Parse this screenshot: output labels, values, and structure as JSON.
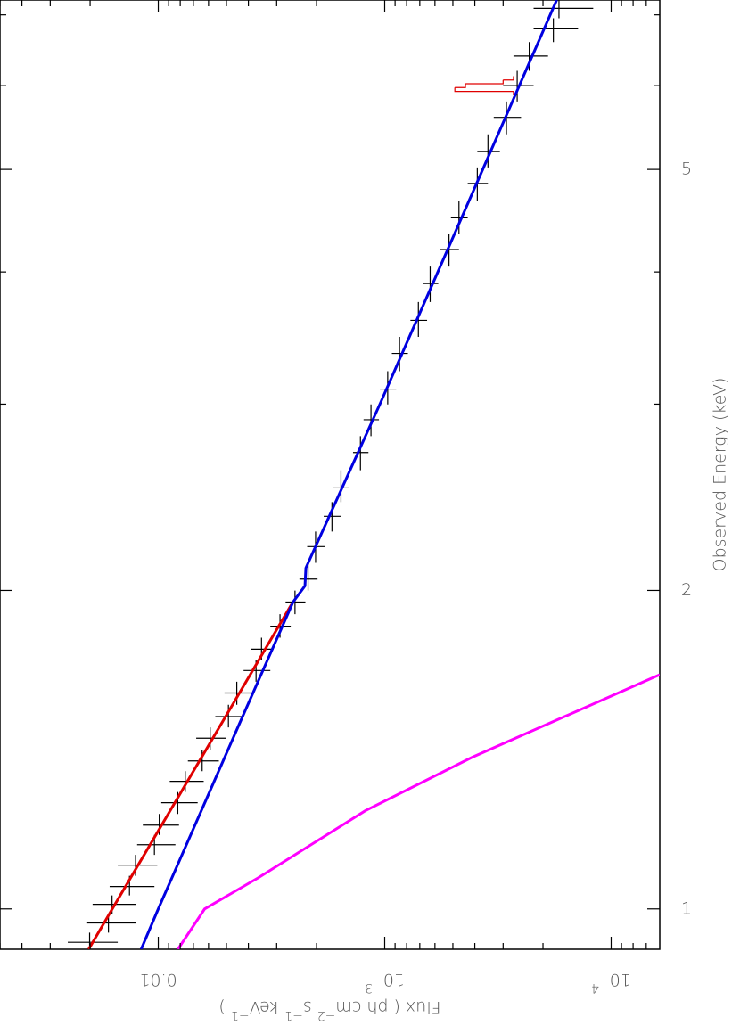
{
  "chart_data": {
    "type": "spectrum",
    "xlabel": "Observed Energy (keV)",
    "ylabel": [
      "Flux ( ph cm",
      "−2",
      " s",
      "−1",
      "  keV",
      "−1",
      " )"
    ],
    "xscale": "log",
    "yscale": "log",
    "xlim": [
      0.916,
      7.23
    ],
    "ylim": [
      6.1e-05,
      0.05
    ],
    "xticks": [
      1,
      2,
      5
    ],
    "xminorticks": [
      3,
      4,
      6,
      7
    ],
    "yticks": [
      0.01,
      {
        "value": 0.001,
        "label": "10",
        "exponent": "−3"
      },
      {
        "value": 0.0001,
        "label": "10",
        "exponent": "−4"
      }
    ],
    "yminorticks": [
      0.02,
      0.03,
      0.04,
      0.05,
      0.002,
      0.003,
      0.004,
      0.005,
      0.006,
      0.007,
      0.008,
      0.009,
      0.0002,
      0.0003,
      0.0004,
      0.0005,
      0.0006,
      0.0007,
      0.0008,
      0.0009,
      7e-05,
      8e-05,
      9e-05
    ],
    "series": [
      {
        "kind": "data",
        "color": "#000000",
        "x": [
          0.93,
          0.97,
          1.01,
          1.05,
          1.1,
          1.15,
          1.2,
          1.26,
          1.32,
          1.38,
          1.45,
          1.52,
          1.6,
          1.68,
          1.76,
          1.85,
          1.95,
          2.05,
          2.2,
          2.35,
          2.5,
          2.7,
          2.9,
          3.1,
          3.35,
          3.6,
          3.9,
          4.2,
          4.5,
          4.85,
          5.2,
          5.6,
          6,
          6.4,
          6.8,
          7.1
        ],
        "values": [
          0.0201,
          0.0166,
          0.016,
          0.0134,
          0.0126,
          0.0104,
          0.0099,
          0.0082,
          0.0076,
          0.0064,
          0.0059,
          0.0049,
          0.0045,
          0.0037,
          0.0035,
          0.0029,
          0.00249,
          0.00218,
          0.00202,
          0.00171,
          0.00156,
          0.00128,
          0.00115,
          0.00097,
          0.00086,
          0.00071,
          0.00063,
          0.00052,
          0.00047,
          0.00039,
          0.00035,
          0.00029,
          0.00026,
          0.00023,
          0.00018,
          0.00017
        ],
        "errors": [
          0.005,
          0.004,
          0.0035,
          0.003,
          0.0025,
          0.002,
          0.0018,
          0.0015,
          0.0013,
          0.001,
          0.0009,
          0.0007,
          0.0006,
          0.0005,
          0.0004,
          0.0003,
          0.00025,
          0.0002,
          0.00018,
          0.00015,
          0.00013,
          0.0001,
          9e-05,
          8e-05,
          7e-05,
          6e-05,
          5e-05,
          5e-05,
          4e-05,
          4e-05,
          4e-05,
          4e-05,
          4e-05,
          4e-05,
          4e-05,
          5e-05
        ]
      },
      {
        "kind": "data",
        "color": "#e00000",
        "x": [
          5.9,
          5.95,
          6,
          6.05,
          6.1
        ],
        "values": [
          0.00027,
          0.00049,
          0.00044,
          0.0003,
          0.00027
        ]
      },
      {
        "kind": "model",
        "color": "#e00000",
        "x": [
          0.916,
          1,
          1.5,
          1.94
        ],
        "values": [
          0.0203,
          0.01596,
          0.00523,
          0.00258
        ]
      },
      {
        "kind": "model",
        "color": "#0000e0",
        "x": [
          0.916,
          1,
          1.5,
          1.95,
          2.02,
          2.1,
          3,
          5,
          7.23
        ],
        "values": [
          0.0119,
          0.01,
          0.00436,
          0.00254,
          0.00225,
          0.00223,
          0.00105,
          0.000369,
          0.000174
        ]
      },
      {
        "kind": "model",
        "color": "#ff00ff",
        "x": [
          0.916,
          1,
          1.07,
          1.238,
          1.391,
          1.665
        ],
        "values": [
          0.00819,
          0.00624,
          0.00362,
          0.00122,
          0.000411,
          6.1e-05
        ]
      }
    ]
  }
}
